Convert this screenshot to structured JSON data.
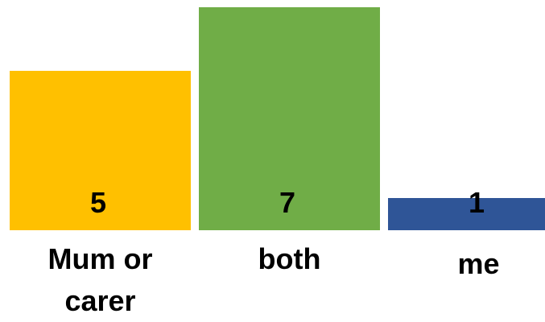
{
  "chart_data": {
    "type": "bar",
    "title": "",
    "xlabel": "",
    "ylabel": "",
    "categories": [
      "Mum or\ncarer",
      "both",
      "me"
    ],
    "values": [
      5,
      7,
      1
    ],
    "value_labels": [
      "5",
      "7",
      "1"
    ],
    "colors": [
      "#ffc000",
      "#70ad47",
      "#2f5597"
    ],
    "ylim": [
      0,
      7
    ],
    "grid": false,
    "legend": "none"
  }
}
